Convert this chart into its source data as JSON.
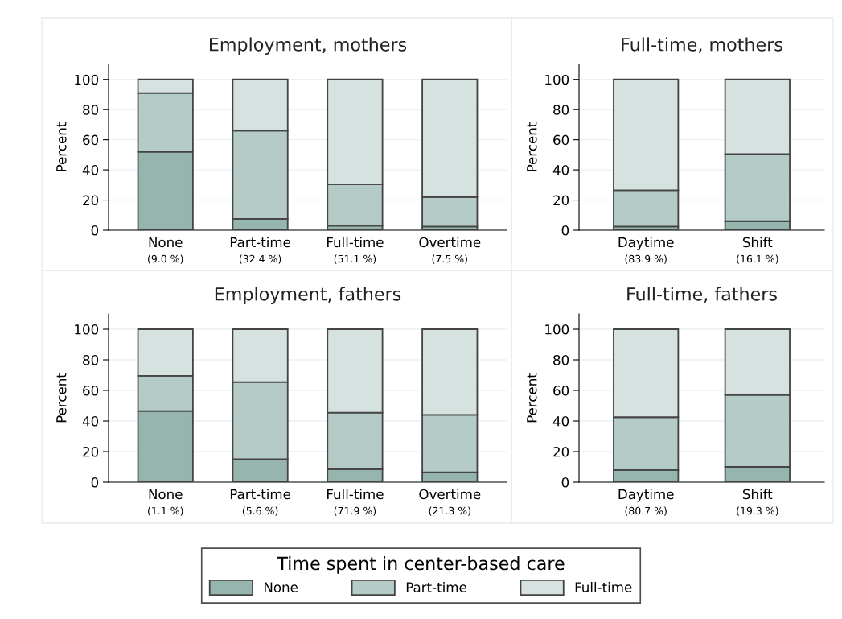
{
  "chart_data": [
    {
      "type": "bar",
      "stacked": true,
      "title": "Employment, mothers",
      "ylabel": "Percent",
      "categories": [
        "None\n(9.0 %)",
        "Part-time\n(32.4 %)",
        "Full-time\n(51.1 %)",
        "Overtime\n(7.5 %)"
      ],
      "ylim": [
        0,
        110
      ],
      "yticks": [
        0,
        20,
        40,
        60,
        80,
        100
      ],
      "grid": "y",
      "legend": "bottom",
      "legend_title": "Time spent in center-based care",
      "series": [
        {
          "name": "None",
          "color": "#96b5ae",
          "values": [
            52,
            7.5,
            3,
            2.5
          ]
        },
        {
          "name": "Part-time",
          "color": "#b5cbc7",
          "values": [
            39,
            58.5,
            27.5,
            19.5
          ]
        },
        {
          "name": "Full-time",
          "color": "#d5e2df",
          "values": [
            9,
            34,
            69.5,
            78
          ]
        }
      ]
    },
    {
      "type": "bar",
      "stacked": true,
      "title": "Full-time, mothers",
      "ylabel": "Percent",
      "categories": [
        "Daytime\n(83.9 %)",
        "Shift\n(16.1 %)"
      ],
      "ylim": [
        0,
        110
      ],
      "yticks": [
        0,
        20,
        40,
        60,
        80,
        100
      ],
      "grid": "y",
      "legend": false,
      "series": [
        {
          "color": "#96b5ae",
          "values": [
            2.5,
            6
          ]
        },
        {
          "color": "#b5cbc7",
          "values": [
            24,
            44.5
          ]
        },
        {
          "color": "#d5e2df",
          "values": [
            73.5,
            49.5
          ]
        }
      ]
    },
    {
      "type": "bar",
      "stacked": true,
      "title": "Employment, fathers",
      "ylabel": "Percent",
      "categories": [
        "None\n(1.1 %)",
        "Part-time\n(5.6 %)",
        "Full-time\n(71.9 %)",
        "Overtime\n(21.3 %)"
      ],
      "ylim": [
        0,
        110
      ],
      "yticks": [
        0,
        20,
        40,
        60,
        80,
        100
      ],
      "grid": "y",
      "legend": false,
      "series": [
        {
          "color": "#96b5ae",
          "values": [
            46.5,
            15,
            8.5,
            6.5
          ]
        },
        {
          "color": "#b5cbc7",
          "values": [
            23,
            50.5,
            37,
            37.5
          ]
        },
        {
          "color": "#d5e2df",
          "values": [
            30.5,
            34.5,
            54.5,
            56
          ]
        }
      ]
    },
    {
      "type": "bar",
      "stacked": true,
      "title": "Full-time, fathers",
      "ylabel": "Percent",
      "categories": [
        "Daytime\n(80.7 %)",
        "Shift\n(19.3 %)"
      ],
      "ylim": [
        0,
        110
      ],
      "yticks": [
        0,
        20,
        40,
        60,
        80,
        100
      ],
      "grid": "y",
      "legend": false,
      "series": [
        {
          "color": "#96b5ae",
          "values": [
            8,
            10
          ]
        },
        {
          "color": "#b5cbc7",
          "values": [
            34.5,
            47
          ]
        },
        {
          "color": "#d5e2df",
          "values": [
            57.5,
            43
          ]
        }
      ]
    }
  ]
}
